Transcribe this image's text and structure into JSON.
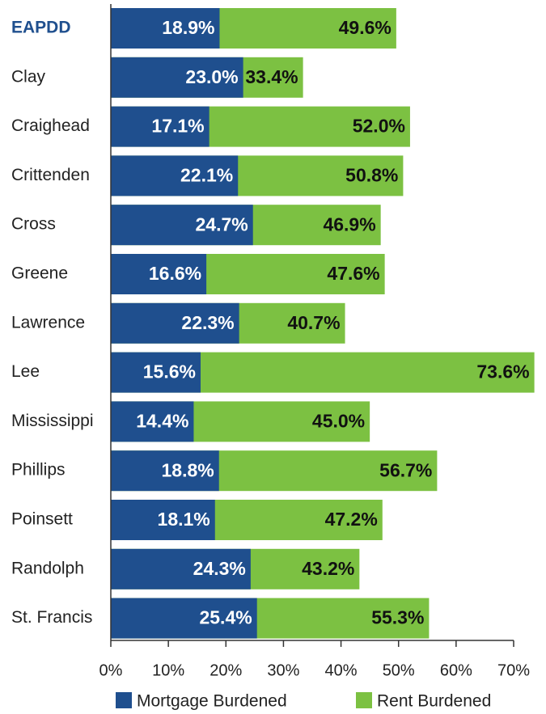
{
  "chart_data": {
    "type": "bar",
    "orientation": "horizontal",
    "overlap": true,
    "categories": [
      "EAPDD",
      "Clay",
      "Craighead",
      "Crittenden",
      "Cross",
      "Greene",
      "Lawrence",
      "Lee",
      "Mississippi",
      "Phillips",
      "Poinsett",
      "Randolph",
      "St. Francis"
    ],
    "series": [
      {
        "name": "Mortgage Burdened",
        "color": "#1f4f8e",
        "values": [
          18.9,
          23.0,
          17.1,
          22.1,
          24.7,
          16.6,
          22.3,
          15.6,
          14.4,
          18.8,
          18.1,
          24.3,
          25.4
        ],
        "value_labels": [
          "18.9%",
          "23.0%",
          "17.1%",
          "22.1%",
          "24.7%",
          "16.6%",
          "22.3%",
          "15.6%",
          "14.4%",
          "18.8%",
          "18.1%",
          "24.3%",
          "25.4%"
        ]
      },
      {
        "name": "Rent Burdened",
        "color": "#7cc142",
        "values": [
          49.6,
          33.4,
          52.0,
          50.8,
          46.9,
          47.6,
          40.7,
          73.6,
          45.0,
          56.7,
          47.2,
          43.2,
          55.3
        ],
        "value_labels": [
          "49.6%",
          "33.4%",
          "52.0%",
          "50.8%",
          "46.9%",
          "47.6%",
          "40.7%",
          "73.6%",
          "45.0%",
          "56.7%",
          "47.2%",
          "43.2%",
          "55.3%"
        ]
      }
    ],
    "xlim": [
      0,
      70
    ],
    "xticks": [
      {
        "value": 0,
        "label": "0%"
      },
      {
        "value": 10,
        "label": "10%"
      },
      {
        "value": 20,
        "label": "20%"
      },
      {
        "value": 30,
        "label": "30%"
      },
      {
        "value": 40,
        "label": "40%"
      },
      {
        "value": 50,
        "label": "50%"
      },
      {
        "value": 60,
        "label": "60%"
      },
      {
        "value": 70,
        "label": "70%"
      }
    ],
    "highlight_category_color": "#1f4f8e",
    "legend": "bottom"
  }
}
